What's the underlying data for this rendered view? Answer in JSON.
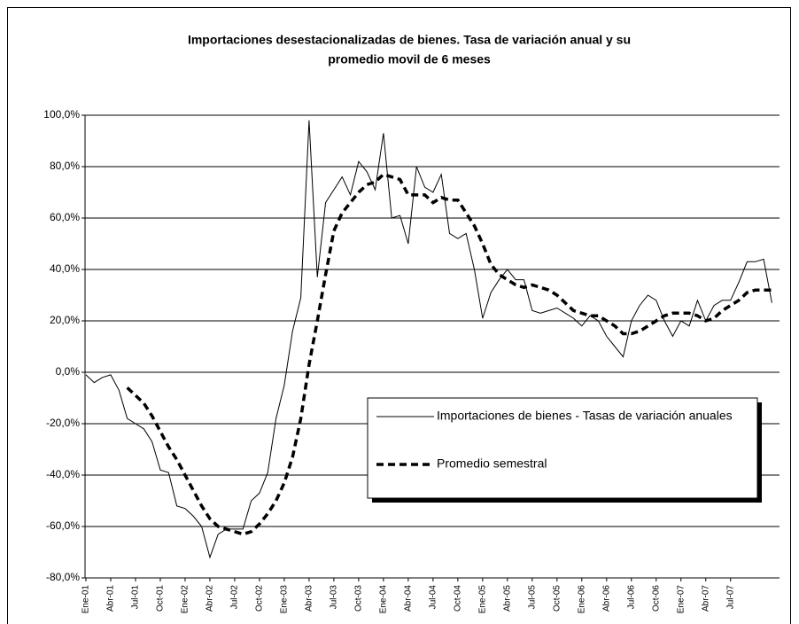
{
  "chart_data": {
    "type": "line",
    "title": [
      "Importaciones desestacionalizadas de bienes. Tasa de variación anual y su",
      "promedio movil de 6 meses"
    ],
    "categories": [
      "Ene-01",
      null,
      null,
      "Abr-01",
      null,
      null,
      "Jul-01",
      null,
      null,
      "Oct-01",
      null,
      null,
      "Ene-02",
      null,
      null,
      "Abr-02",
      null,
      null,
      "Jul-02",
      null,
      null,
      "Oct-02",
      null,
      null,
      "Ene-03",
      null,
      null,
      "Abr-03",
      null,
      null,
      "Jul-03",
      null,
      null,
      "Oct-03",
      null,
      null,
      "Ene-04",
      null,
      null,
      "Abr-04",
      null,
      null,
      "Jul-04",
      null,
      null,
      "Oct-04",
      null,
      null,
      "Ene-05",
      null,
      null,
      "Abr-05",
      null,
      null,
      "Jul-05",
      null,
      null,
      "Oct-05",
      null,
      null,
      "Ene-06",
      null,
      null,
      "Abr-06",
      null,
      null,
      "Jul-06",
      null,
      null,
      "Oct-06",
      null,
      null,
      "Ene-07",
      null,
      null,
      "Abr-07",
      null,
      null,
      "Jul-07",
      null,
      null,
      null,
      null,
      null
    ],
    "series": [
      {
        "name": "Importaciones de bienes - Tasas de variación anuales",
        "color": "#000000",
        "style": "solid",
        "values": [
          -1,
          -4,
          -2,
          -1,
          -7,
          -18,
          -20,
          -22,
          -27,
          -38,
          -39,
          -52,
          -53,
          -56,
          -60,
          -72,
          -63,
          -61,
          -61,
          -61,
          -50,
          -47,
          -39,
          -18,
          -5,
          16,
          29,
          98,
          37,
          66,
          71,
          76,
          69,
          82,
          78,
          71,
          93,
          60,
          61,
          50,
          80,
          72,
          70,
          77,
          54,
          52,
          54,
          40,
          21,
          31,
          36,
          40,
          36,
          36,
          24,
          23,
          24,
          25,
          23,
          21,
          18,
          22,
          20,
          14,
          10,
          6,
          20,
          26,
          30,
          28,
          20,
          14,
          20,
          18,
          28,
          20,
          26,
          28,
          28,
          35,
          43,
          43,
          44,
          27
        ]
      },
      {
        "name": "Promedio semestral",
        "color": "#000000",
        "style": "dashed",
        "values": [
          null,
          null,
          null,
          null,
          null,
          -6,
          -9,
          -12,
          -17,
          -23,
          -29,
          -34,
          -40,
          -46,
          -52,
          -57,
          -60,
          -61,
          -62,
          -63,
          -62,
          -59,
          -55,
          -50,
          -43,
          -33,
          -18,
          3,
          20,
          38,
          55,
          62,
          66,
          70,
          73,
          74,
          77,
          76,
          75,
          69,
          69,
          69,
          66,
          68,
          67,
          67,
          62,
          57,
          50,
          42,
          38,
          36,
          34,
          33,
          34,
          33,
          32,
          30,
          27,
          24,
          23,
          22,
          22,
          20,
          18,
          15,
          15,
          16,
          18,
          20,
          22,
          23,
          23,
          23,
          22,
          20,
          21,
          24,
          26,
          28,
          31,
          32,
          32,
          32
        ]
      }
    ],
    "ylim": [
      -80,
      100
    ],
    "yticks": [
      {
        "value": -80,
        "label": "-80,0%"
      },
      {
        "value": -60,
        "label": "-60,0%"
      },
      {
        "value": -40,
        "label": "-40,0%"
      },
      {
        "value": -20,
        "label": "-20,0%"
      },
      {
        "value": 0,
        "label": "0,0%"
      },
      {
        "value": 20,
        "label": "20,0%"
      },
      {
        "value": 40,
        "label": "40,0%"
      },
      {
        "value": 60,
        "label": "60,0%"
      },
      {
        "value": 80,
        "label": "80,0%"
      },
      {
        "value": 100,
        "label": "100,0%"
      }
    ],
    "grid": true
  }
}
